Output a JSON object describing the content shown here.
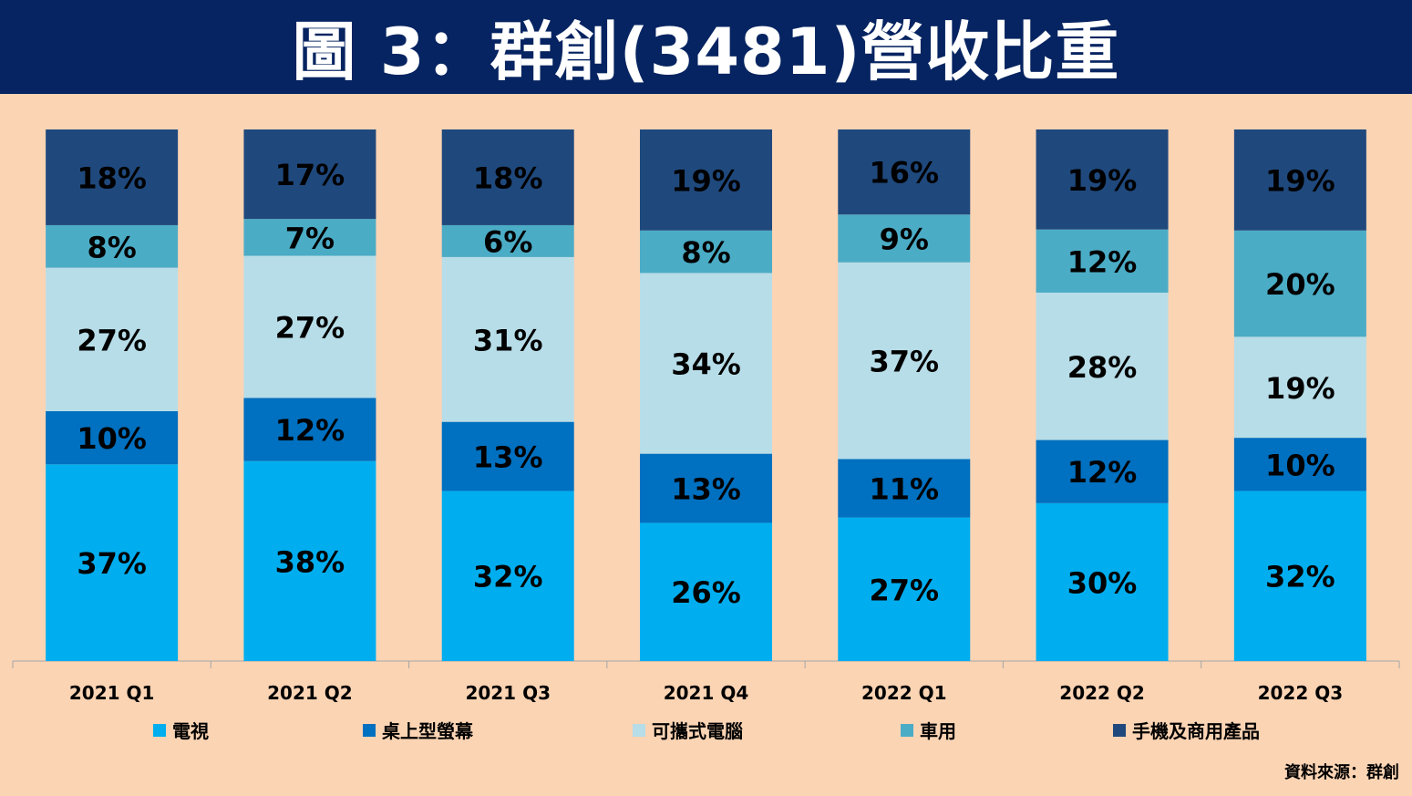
{
  "title": "圖 3：群創(3481)營收比重",
  "source": "資料來源：群創",
  "colors": {
    "background": "#fbd4b4",
    "title_bar": "#062461",
    "title_text": "#ffffff"
  },
  "chart_data": {
    "type": "bar",
    "stacked": true,
    "percent": true,
    "categories": [
      "2021 Q1",
      "2021 Q2",
      "2021 Q3",
      "2021 Q4",
      "2022 Q1",
      "2022 Q2",
      "2022 Q3"
    ],
    "ylim": [
      0,
      100
    ],
    "grid": false,
    "legend_position": "bottom",
    "series": [
      {
        "name": "電視",
        "color": "#00aeef",
        "values": [
          37,
          38,
          32,
          26,
          27,
          30,
          32
        ]
      },
      {
        "name": "桌上型螢幕",
        "color": "#0070c0",
        "values": [
          10,
          12,
          13,
          13,
          11,
          12,
          10
        ]
      },
      {
        "name": "可攜式電腦",
        "color": "#b7dde8",
        "values": [
          27,
          27,
          31,
          34,
          37,
          28,
          19
        ]
      },
      {
        "name": "車用",
        "color": "#4bacc6",
        "values": [
          8,
          7,
          6,
          8,
          9,
          12,
          20
        ]
      },
      {
        "name": "手機及商用產品",
        "color": "#1f497d",
        "values": [
          18,
          17,
          18,
          19,
          16,
          19,
          19
        ]
      }
    ]
  }
}
